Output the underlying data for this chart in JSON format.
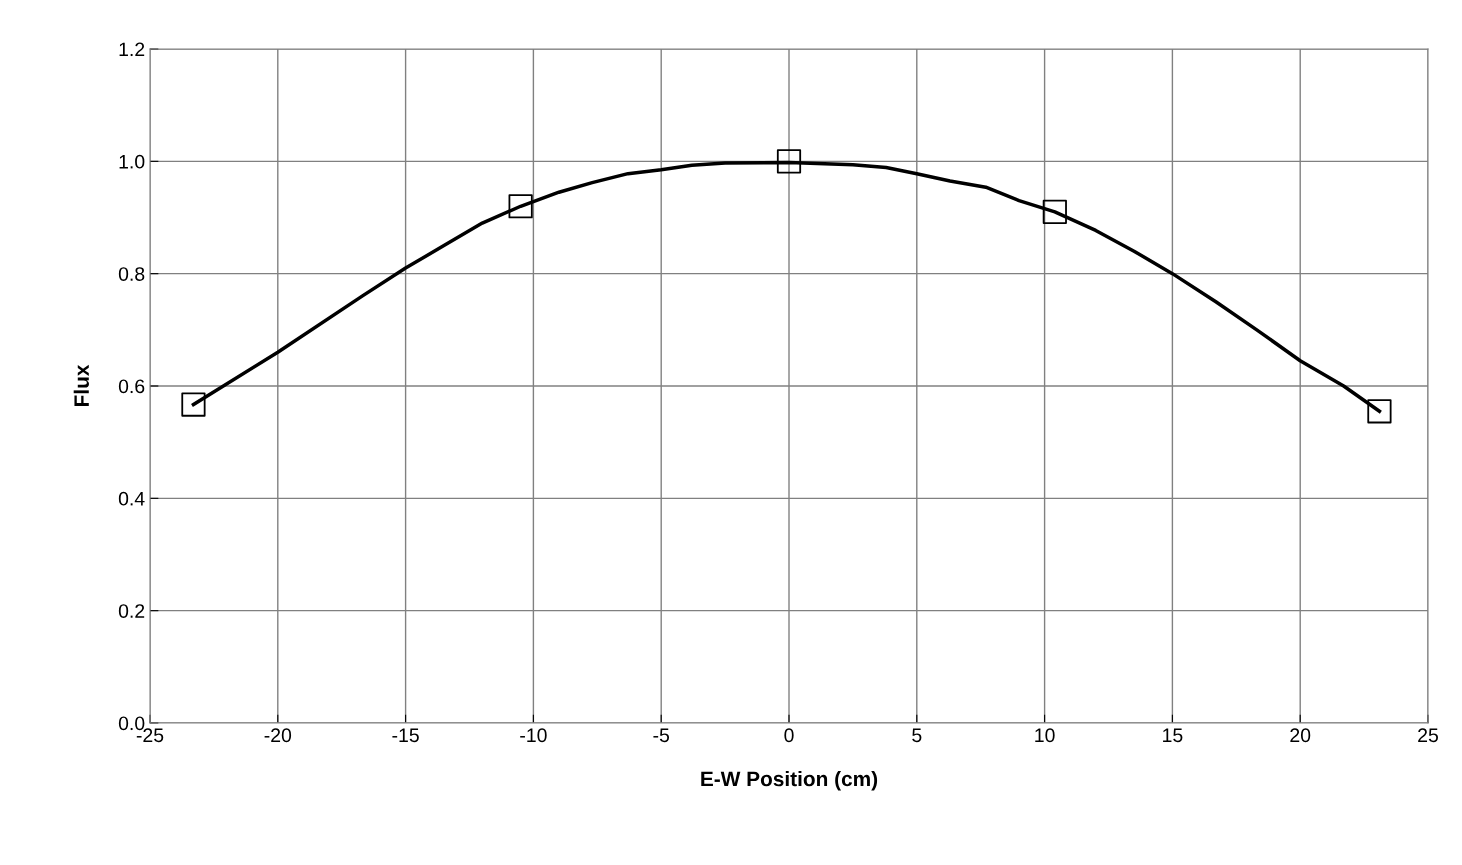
{
  "chart_data": {
    "type": "line",
    "xlabel": "E-W Position (cm)",
    "ylabel": "Flux",
    "xlim": [
      -25,
      25
    ],
    "xticks": [
      -25,
      -20,
      -15,
      -10,
      -5,
      0,
      5,
      10,
      15,
      20,
      25
    ],
    "ylim": [
      0,
      1.2
    ],
    "yticks": [
      {
        "value": 0,
        "label": "0.0"
      },
      {
        "value": 0.2,
        "label": "0.2"
      },
      {
        "value": 0.4,
        "label": "0.4"
      },
      {
        "value": 0.6,
        "label": "0.6"
      },
      {
        "value": 0.8,
        "label": "0.8"
      },
      {
        "value": 1.0,
        "label": "1.0"
      },
      {
        "value": 1.2,
        "label": "1.2"
      }
    ],
    "grid": true,
    "legend": false,
    "series": [
      {
        "color": "#000000",
        "marker": "none",
        "line_style": "solid",
        "x": [
          -23.3,
          -20,
          -16.7,
          -15,
          -13.5,
          -12,
          -10.5,
          -9,
          -7.7,
          -6.3,
          -5,
          -3.8,
          -2.5,
          0,
          2.5,
          3.8,
          5,
          6.3,
          7.7,
          9,
          10.4,
          12,
          13.5,
          15,
          16.7,
          18.3,
          20,
          21.7,
          23.1
        ],
        "values": [
          0.567,
          0.66,
          0.76,
          0.81,
          0.85,
          0.89,
          0.92,
          0.945,
          0.962,
          0.978,
          0.985,
          0.993,
          0.997,
          0.998,
          0.994,
          0.989,
          0.978,
          0.965,
          0.954,
          0.93,
          0.91,
          0.877,
          0.84,
          0.8,
          0.75,
          0.7,
          0.645,
          0.6,
          0.555
        ]
      },
      {
        "type": "scatter",
        "color": "#000000",
        "marker": "square",
        "x": [
          -23.3,
          -10.5,
          0,
          10.4,
          23.1
        ],
        "values": [
          0.567,
          0.92,
          1.0,
          0.91,
          0.555
        ]
      }
    ]
  }
}
